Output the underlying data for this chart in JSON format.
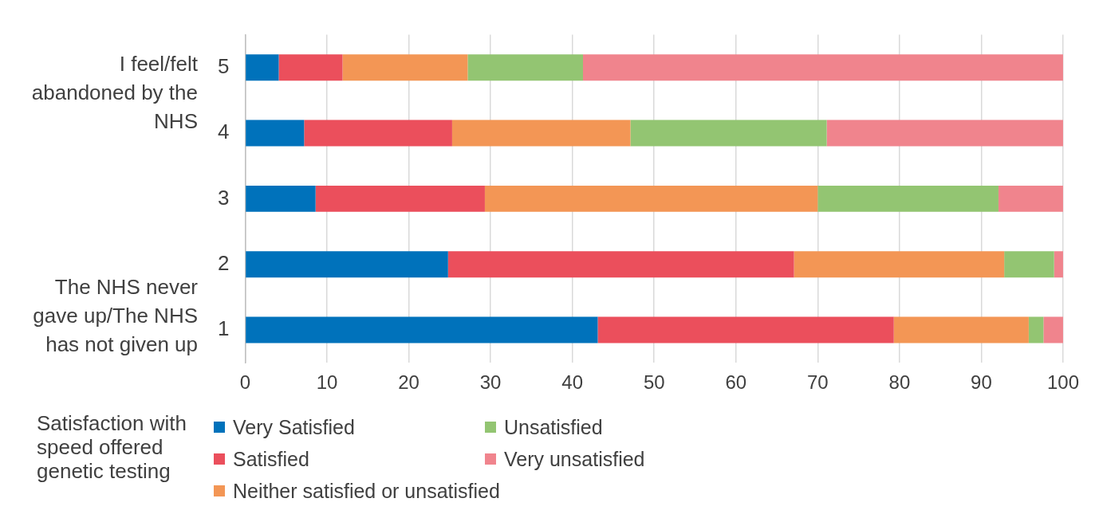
{
  "chart_data": {
    "type": "bar",
    "orientation": "horizontal",
    "stacked": true,
    "categories": [
      "5",
      "4",
      "3",
      "2",
      "1"
    ],
    "series": [
      {
        "name": "Very Satisfied",
        "color": "#0072bb",
        "values": [
          4.1,
          7.2,
          8.6,
          24.8,
          43.1
        ]
      },
      {
        "name": "Satisfied",
        "color": "#eb4f5c",
        "values": [
          7.8,
          18.1,
          20.7,
          42.3,
          36.2
        ]
      },
      {
        "name": "Neither satisfied or unsatisfied",
        "color": "#f39655",
        "values": [
          15.3,
          21.8,
          40.7,
          25.7,
          16.5
        ]
      },
      {
        "name": "Unsatisfied",
        "color": "#93c572",
        "values": [
          14.1,
          24.0,
          22.1,
          6.1,
          1.8
        ]
      },
      {
        "name": "Very unsatisfied",
        "color": "#f0848d",
        "values": [
          58.7,
          28.9,
          7.9,
          1.1,
          2.4
        ]
      }
    ],
    "xlim": [
      0,
      100
    ],
    "xticks": [
      0,
      10,
      20,
      30,
      40,
      50,
      60,
      70,
      80,
      90,
      100
    ],
    "grid": "x",
    "legend": "bottom",
    "legend_title": "Satisfaction with speed offered genetic testing",
    "annotations": [
      "I feel/felt abandoned by the NHS",
      "The NHS never gave up/The NHS has not given up"
    ]
  }
}
